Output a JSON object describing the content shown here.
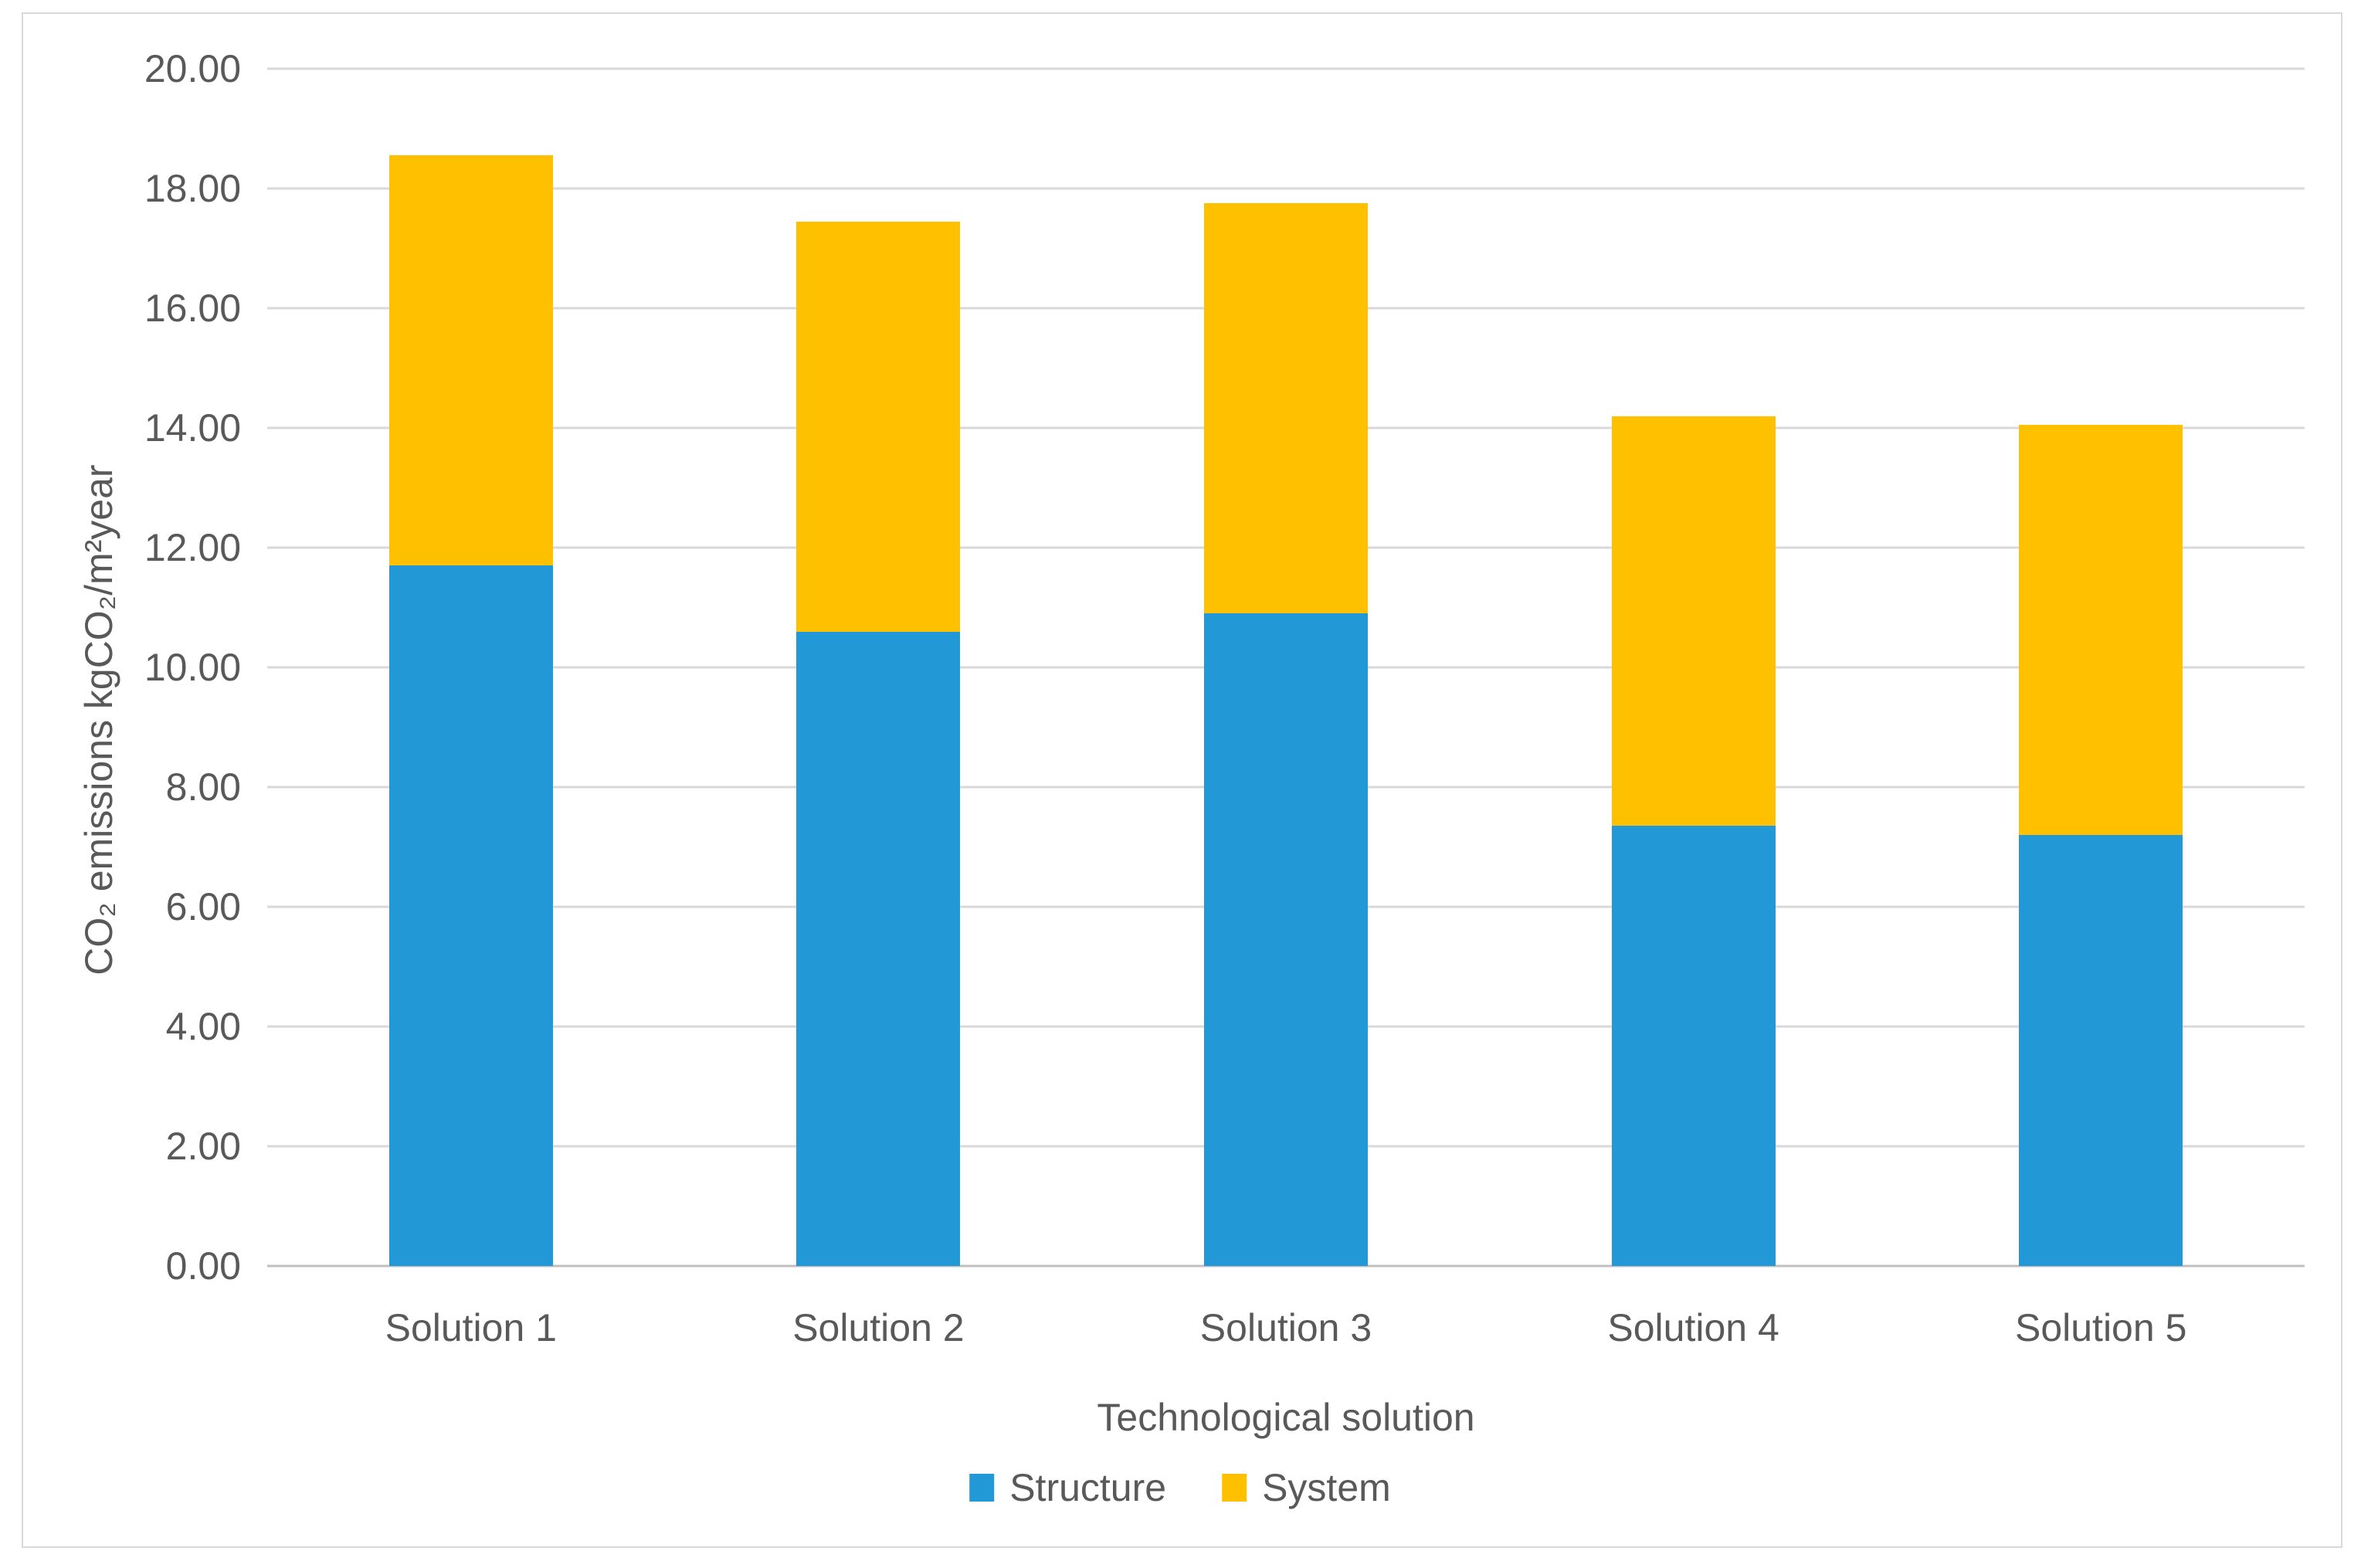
{
  "chart_data": {
    "type": "bar",
    "stacked": true,
    "orientation": "vertical",
    "categories": [
      "Solution 1",
      "Solution 2",
      "Solution 3",
      "Solution 4",
      "Solution 5"
    ],
    "series": [
      {
        "name": "Structure",
        "color": "#2299d6",
        "values": [
          11.7,
          10.6,
          10.9,
          7.35,
          7.2
        ]
      },
      {
        "name": "System",
        "color": "#ffc000",
        "values": [
          6.85,
          6.85,
          6.85,
          6.85,
          6.85
        ]
      }
    ],
    "stack_totals": [
      18.55,
      17.45,
      17.75,
      14.2,
      14.05
    ],
    "title": "",
    "xlabel": "Technological solution",
    "ylabel": "CO₂ emissions kgCO₂/m²year",
    "ylim": [
      0,
      20
    ],
    "ytick_step": 2,
    "ytick_decimals": 2,
    "grid": "horizontal-only",
    "legend_position": "bottom-center"
  },
  "style_colors": {
    "gridline": "#d9d9d9",
    "axis_line": "#bfbfbf",
    "text": "#595959",
    "chart_border": "#d9d9d9",
    "background": "#ffffff"
  }
}
